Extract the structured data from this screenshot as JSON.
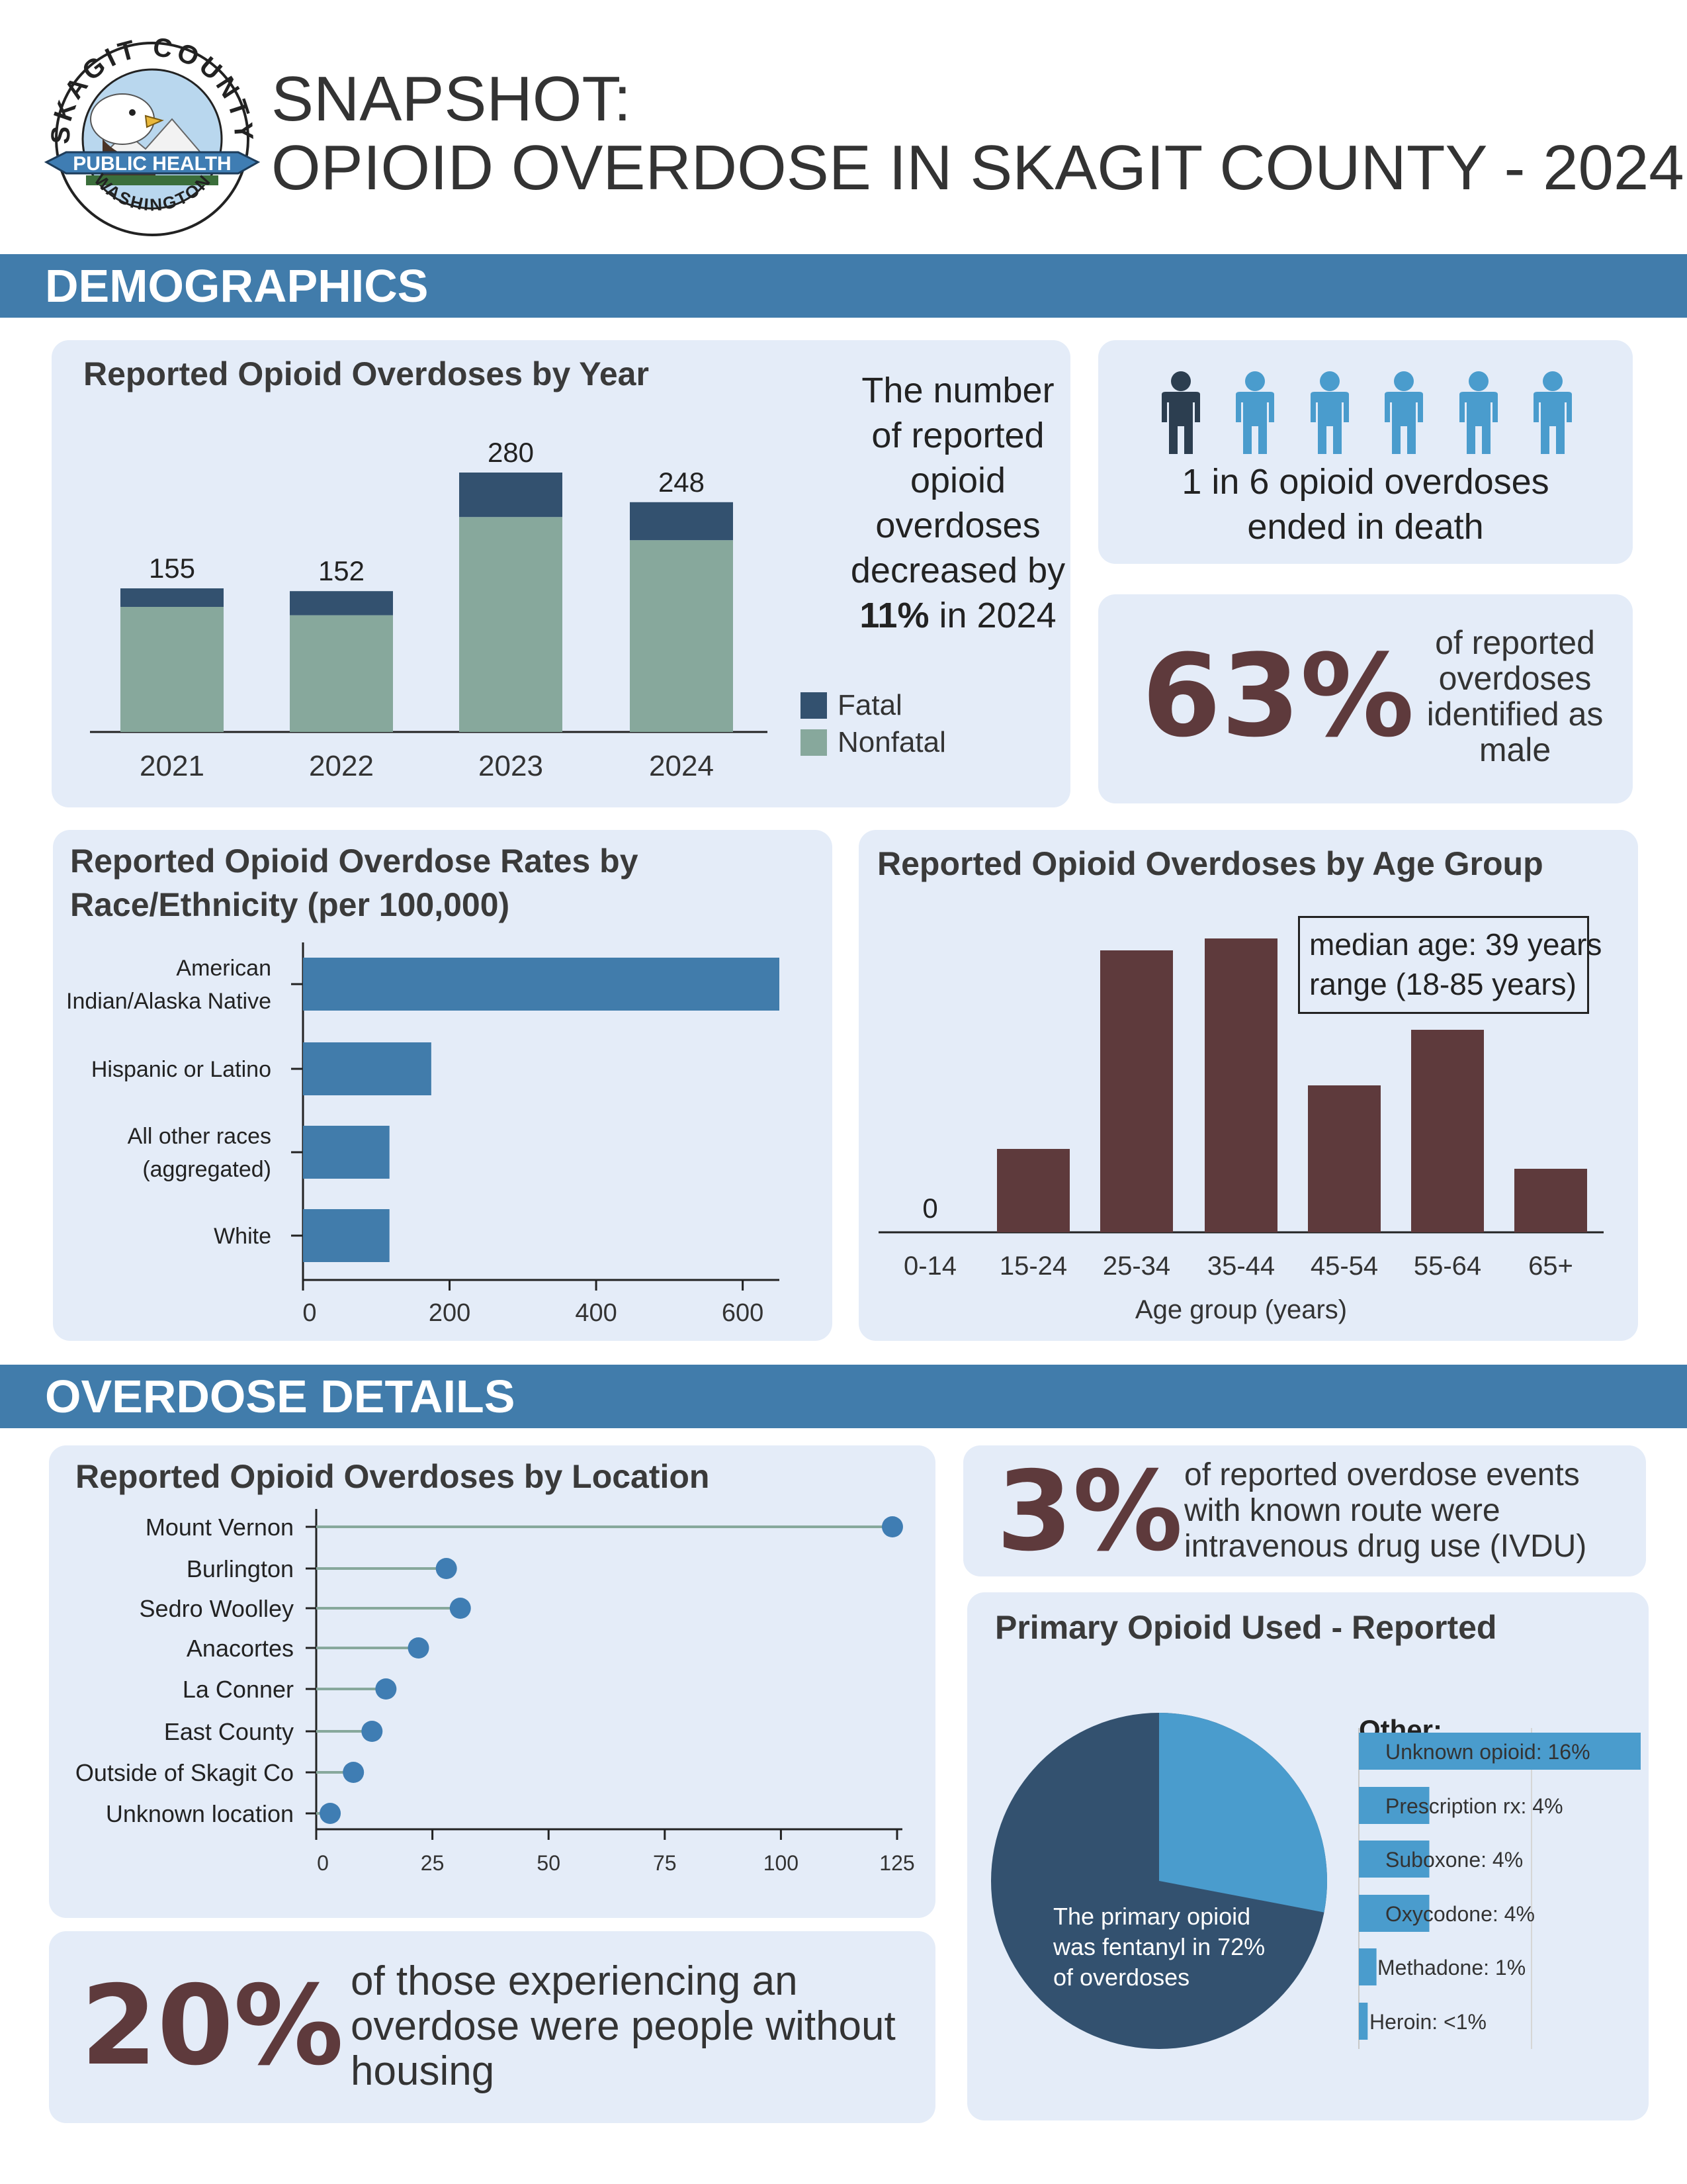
{
  "logo": {
    "arc_top": "SKAGIT COUNTY",
    "banner": "PUBLIC HEALTH",
    "arc_bottom": "WASHINGTON"
  },
  "header": {
    "title_line1": "SNAPSHOT:",
    "title_line2": "OPIOID OVERDOSE IN SKAGIT COUNTY - 2024"
  },
  "sections": {
    "demographics": "DEMOGRAPHICS",
    "details": "OVERDOSE DETAILS"
  },
  "stats": {
    "decrease_line1": "The number",
    "decrease_line2": "of reported",
    "decrease_line3": "opioid",
    "decrease_line4": "overdoses",
    "decrease_line5": "decreased by",
    "decrease_pct": "11%",
    "decrease_suffix": " in 2024",
    "death_ratio_line1": "1 in 6 opioid overdoses",
    "death_ratio_line2": "ended in death",
    "male_pct": "63%",
    "male_line1": "of reported",
    "male_line2": "overdoses",
    "male_line3": "identified as",
    "male_line4": "male",
    "ivdu_pct": "3%",
    "ivdu_line1": "of reported overdose events",
    "ivdu_line2": "with known route were",
    "ivdu_line3": "intravenous drug use (IVDU)",
    "housing_pct": "20%",
    "housing_line1": "of those experiencing an",
    "housing_line2": "overdose were people without",
    "housing_line3": "housing"
  },
  "person_icons": [
    "dark",
    "light",
    "light",
    "light",
    "light",
    "light"
  ],
  "colors": {
    "fatal": "#33516f",
    "nonfatal": "#87a89c",
    "race_bar": "#417cab",
    "age_bar": "#5e3a3c",
    "lollipop_line": "#87a89c",
    "lollipop_dot": "#3f7db3",
    "pie_dark": "#33516f",
    "pie_light": "#4a9ccd",
    "other_bar": "#4a9ccd",
    "person_dark": "#2c3e50",
    "person_light": "#4a9ccd"
  },
  "chart_data": [
    {
      "id": "by_year",
      "type": "bar",
      "stacked": true,
      "title": "Reported Opioid Overdoses by Year",
      "categories": [
        "2021",
        "2022",
        "2023",
        "2024"
      ],
      "series": [
        {
          "name": "Nonfatal",
          "values": [
            135,
            126,
            232,
            207
          ]
        },
        {
          "name": "Fatal",
          "values": [
            20,
            26,
            48,
            41
          ]
        }
      ],
      "totals": [
        155,
        152,
        280,
        248
      ],
      "legend": [
        "Fatal",
        "Nonfatal"
      ],
      "legend_position": "right",
      "ylim": [
        0,
        300
      ]
    },
    {
      "id": "race",
      "type": "bar",
      "orientation": "horizontal",
      "title": "Reported Opioid Overdose Rates by Race/Ethnicity (per 100,000)",
      "title_line1": "Reported Opioid Overdose Rates by",
      "title_line2": "Race/Ethnicity (per 100,000)",
      "categories": [
        [
          "American",
          "Indian/Alaska Native"
        ],
        [
          "Hispanic or Latino"
        ],
        [
          "All other races",
          "(aggregated)"
        ],
        [
          "White"
        ]
      ],
      "values": [
        650,
        175,
        118,
        118
      ],
      "xlim": [
        0,
        650
      ],
      "xticks": [
        "0",
        "200",
        "400",
        "600"
      ],
      "xtick_values": [
        0,
        200,
        400,
        600
      ]
    },
    {
      "id": "age",
      "type": "bar",
      "title": "Reported Opioid Overdoses by Age Group",
      "categories": [
        "0-14",
        "15-24",
        "25-34",
        "35-44",
        "45-54",
        "55-64",
        "65+"
      ],
      "values": [
        0,
        21,
        71,
        74,
        37,
        51,
        16
      ],
      "zero_label": "0",
      "xlabel": "Age group (years)",
      "ylim": [
        0,
        80
      ],
      "annotation_line1": "median age: 39 years",
      "annotation_line2": "range (18-85 years)"
    },
    {
      "id": "location",
      "type": "scatter",
      "style": "lollipop",
      "title": "Reported Opioid Overdoses by Location",
      "categories": [
        "Mount Vernon",
        "Burlington",
        "Sedro Woolley",
        "Anacortes",
        "La Conner",
        "East County",
        "Outside of Skagit Co",
        "Unknown location"
      ],
      "values": [
        124,
        28,
        31,
        22,
        15,
        12,
        8,
        3
      ],
      "xlim": [
        0,
        125
      ],
      "xticks": [
        "0",
        "25",
        "50",
        "75",
        "100",
        "125"
      ],
      "xtick_values": [
        0,
        25,
        50,
        75,
        100,
        125
      ]
    },
    {
      "id": "primary_opioid",
      "type": "pie",
      "title": "Primary Opioid Used - Reported",
      "slices": [
        {
          "name": "Fentanyl",
          "value": 72
        },
        {
          "name": "Other",
          "value": 28
        }
      ],
      "pie_label_line1": "The primary opioid",
      "pie_label_line2": "was fentanyl in 72%",
      "pie_label_line3": "of overdoses"
    },
    {
      "id": "other_opioids",
      "type": "bar",
      "orientation": "horizontal",
      "title": "Other:",
      "categories": [
        "Unknown opioid",
        "Prescription rx",
        "Suboxone",
        "Oxycodone",
        "Methadone",
        "Heroin"
      ],
      "values": [
        16,
        4,
        4,
        4,
        1,
        0.5
      ],
      "labels": [
        "Unknown opioid: 16%",
        "Prescription rx: 4%",
        "Suboxone: 4%",
        "Oxycodone: 4%",
        "Methadone: 1%",
        "Heroin: <1%"
      ],
      "xlim": [
        0,
        16
      ]
    }
  ]
}
